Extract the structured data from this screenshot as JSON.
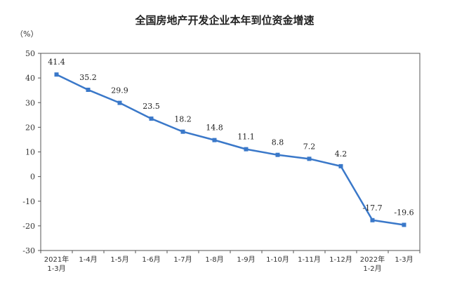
{
  "chart_data": {
    "type": "line",
    "title": "全国房地产开发企业本年到位资金增速",
    "ylabel": "（%）",
    "xlabel": "",
    "ylim": [
      -30,
      50
    ],
    "yticks": [
      50,
      40,
      30,
      20,
      10,
      0,
      -10,
      -20,
      -30
    ],
    "grid": false,
    "categories": [
      [
        "2021年",
        "1-3月"
      ],
      [
        "1-4月"
      ],
      [
        "1-5月"
      ],
      [
        "1-6月"
      ],
      [
        "1-7月"
      ],
      [
        "1-8月"
      ],
      [
        "1-9月"
      ],
      [
        "1-10月"
      ],
      [
        "1-11月"
      ],
      [
        "1-12月"
      ],
      [
        "2022年",
        "1-2月"
      ],
      [
        "1-3月"
      ]
    ],
    "series": [
      {
        "values": [
          41.4,
          35.2,
          29.9,
          23.5,
          18.2,
          14.8,
          11.1,
          8.8,
          7.2,
          4.2,
          -17.7,
          -19.6
        ],
        "labels": [
          "41.4",
          "35.2",
          "29.9",
          "23.5",
          "18.2",
          "14.8",
          "11.1",
          "8.8",
          "7.2",
          "4.2",
          "-17.7",
          "-19.6"
        ],
        "color": "#3a78c9"
      }
    ]
  }
}
